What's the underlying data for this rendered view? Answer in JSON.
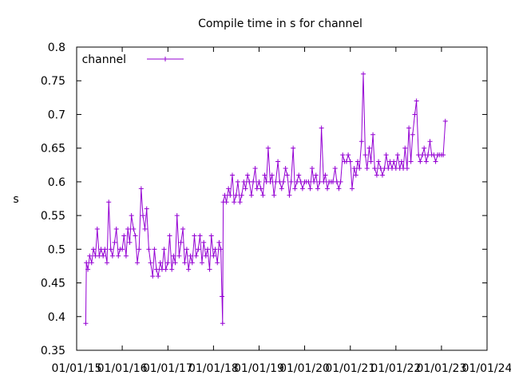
{
  "chart_data": {
    "type": "line",
    "title": "Compile time in s for channel",
    "xlabel": "",
    "ylabel": "s",
    "ylim": [
      0.35,
      0.8
    ],
    "yticks": [
      0.35,
      0.4,
      0.45,
      0.5,
      0.55,
      0.6,
      0.65,
      0.7,
      0.75,
      0.8
    ],
    "ytick_labels": [
      "0.35",
      "0.4",
      "0.45",
      "0.5",
      "0.55",
      "0.6",
      "0.65",
      "0.7",
      "0.75",
      "0.8"
    ],
    "xlim": [
      "2015-01-01",
      "2024-01-01"
    ],
    "xticks": [
      "2015-01-01",
      "2016-01-01",
      "2017-01-01",
      "2018-01-01",
      "2019-01-01",
      "2020-01-01",
      "2021-01-01",
      "2022-01-01",
      "2023-01-01",
      "2024-01-01"
    ],
    "xtick_labels": [
      "01/01/15",
      "01/01/16",
      "01/01/17",
      "01/01/18",
      "01/01/19",
      "01/01/20",
      "01/01/21",
      "01/01/22",
      "01/01/23",
      "01/01/24"
    ],
    "grid": false,
    "legend": "top-left",
    "color": "#9400d3",
    "series": [
      {
        "name": "channel",
        "x": [
          "2015-03-15",
          "2015-03-20",
          "2015-04-01",
          "2015-04-15",
          "2015-05-01",
          "2015-05-15",
          "2015-06-01",
          "2015-06-15",
          "2015-07-01",
          "2015-07-15",
          "2015-08-01",
          "2015-08-15",
          "2015-09-01",
          "2015-09-15",
          "2015-10-01",
          "2015-10-15",
          "2015-11-01",
          "2015-11-15",
          "2015-12-01",
          "2015-12-15",
          "2016-01-01",
          "2016-01-15",
          "2016-02-01",
          "2016-02-15",
          "2016-03-01",
          "2016-03-15",
          "2016-04-01",
          "2016-04-15",
          "2016-05-01",
          "2016-05-15",
          "2016-06-01",
          "2016-06-15",
          "2016-07-01",
          "2016-07-15",
          "2016-08-01",
          "2016-08-15",
          "2016-09-01",
          "2016-09-15",
          "2016-10-01",
          "2016-10-15",
          "2016-11-01",
          "2016-11-15",
          "2016-12-01",
          "2016-12-15",
          "2017-01-01",
          "2017-01-15",
          "2017-02-01",
          "2017-02-15",
          "2017-03-01",
          "2017-03-15",
          "2017-04-01",
          "2017-04-15",
          "2017-05-01",
          "2017-05-15",
          "2017-06-01",
          "2017-06-15",
          "2017-07-01",
          "2017-07-15",
          "2017-08-01",
          "2017-08-15",
          "2017-09-01",
          "2017-09-15",
          "2017-10-01",
          "2017-10-15",
          "2017-11-01",
          "2017-11-15",
          "2017-12-01",
          "2017-12-15",
          "2018-01-01",
          "2018-01-15",
          "2018-02-01",
          "2018-02-15",
          "2018-03-01",
          "2018-03-10",
          "2018-03-15",
          "2018-03-20",
          "2018-04-01",
          "2018-04-15",
          "2018-05-01",
          "2018-05-15",
          "2018-06-01",
          "2018-06-15",
          "2018-07-01",
          "2018-07-15",
          "2018-08-01",
          "2018-08-15",
          "2018-09-01",
          "2018-09-15",
          "2018-10-01",
          "2018-10-15",
          "2018-11-01",
          "2018-11-15",
          "2018-12-01",
          "2018-12-15",
          "2019-01-01",
          "2019-01-15",
          "2019-02-01",
          "2019-02-15",
          "2019-03-01",
          "2019-03-15",
          "2019-04-01",
          "2019-04-15",
          "2019-05-01",
          "2019-05-15",
          "2019-06-01",
          "2019-06-15",
          "2019-07-01",
          "2019-07-15",
          "2019-08-01",
          "2019-08-15",
          "2019-09-01",
          "2019-09-15",
          "2019-10-01",
          "2019-10-15",
          "2019-11-01",
          "2019-11-15",
          "2019-12-01",
          "2019-12-15",
          "2020-01-01",
          "2020-01-15",
          "2020-02-01",
          "2020-02-15",
          "2020-03-01",
          "2020-03-15",
          "2020-04-01",
          "2020-04-15",
          "2020-05-01",
          "2020-05-15",
          "2020-06-01",
          "2020-06-15",
          "2020-07-01",
          "2020-07-15",
          "2020-08-01",
          "2020-08-15",
          "2020-09-01",
          "2020-09-15",
          "2020-10-01",
          "2020-10-15",
          "2020-11-01",
          "2020-11-15",
          "2020-12-01",
          "2020-12-15",
          "2021-01-01",
          "2021-01-15",
          "2021-02-01",
          "2021-02-15",
          "2021-03-01",
          "2021-03-15",
          "2021-04-01",
          "2021-04-15",
          "2021-05-01",
          "2021-05-15",
          "2021-06-01",
          "2021-06-15",
          "2021-07-01",
          "2021-07-15",
          "2021-08-01",
          "2021-08-15",
          "2021-09-01",
          "2021-09-15",
          "2021-10-01",
          "2021-10-15",
          "2021-11-01",
          "2021-11-15",
          "2021-12-01",
          "2021-12-15",
          "2022-01-01",
          "2022-01-15",
          "2022-02-01",
          "2022-02-15",
          "2022-03-01",
          "2022-03-15",
          "2022-04-01",
          "2022-04-15",
          "2022-05-01",
          "2022-05-15",
          "2022-06-01",
          "2022-06-15",
          "2022-07-01",
          "2022-07-15",
          "2022-08-01",
          "2022-08-15",
          "2022-09-01",
          "2022-09-15",
          "2022-10-01",
          "2022-10-15",
          "2022-11-01",
          "2022-11-15",
          "2022-12-01",
          "2022-12-15",
          "2023-01-01",
          "2023-01-15",
          "2023-02-01"
        ],
        "values": [
          0.39,
          0.48,
          0.47,
          0.49,
          0.48,
          0.5,
          0.49,
          0.53,
          0.49,
          0.5,
          0.49,
          0.5,
          0.48,
          0.57,
          0.5,
          0.49,
          0.51,
          0.53,
          0.49,
          0.5,
          0.5,
          0.52,
          0.49,
          0.53,
          0.51,
          0.55,
          0.53,
          0.52,
          0.48,
          0.5,
          0.59,
          0.55,
          0.53,
          0.56,
          0.5,
          0.48,
          0.46,
          0.5,
          0.47,
          0.46,
          0.48,
          0.47,
          0.5,
          0.47,
          0.48,
          0.52,
          0.47,
          0.49,
          0.48,
          0.55,
          0.49,
          0.51,
          0.53,
          0.48,
          0.5,
          0.47,
          0.49,
          0.48,
          0.52,
          0.49,
          0.5,
          0.52,
          0.48,
          0.51,
          0.49,
          0.5,
          0.47,
          0.52,
          0.49,
          0.5,
          0.48,
          0.51,
          0.5,
          0.43,
          0.39,
          0.57,
          0.58,
          0.57,
          0.59,
          0.58,
          0.61,
          0.57,
          0.58,
          0.6,
          0.57,
          0.58,
          0.6,
          0.59,
          0.61,
          0.6,
          0.58,
          0.6,
          0.62,
          0.59,
          0.6,
          0.59,
          0.58,
          0.61,
          0.6,
          0.65,
          0.6,
          0.61,
          0.58,
          0.6,
          0.63,
          0.6,
          0.59,
          0.6,
          0.62,
          0.61,
          0.58,
          0.6,
          0.65,
          0.59,
          0.6,
          0.61,
          0.6,
          0.59,
          0.6,
          0.6,
          0.6,
          0.59,
          0.62,
          0.6,
          0.61,
          0.59,
          0.6,
          0.68,
          0.6,
          0.61,
          0.59,
          0.6,
          0.6,
          0.6,
          0.62,
          0.6,
          0.59,
          0.6,
          0.64,
          0.63,
          0.63,
          0.64,
          0.63,
          0.59,
          0.62,
          0.61,
          0.63,
          0.62,
          0.66,
          0.76,
          0.64,
          0.62,
          0.65,
          0.63,
          0.67,
          0.62,
          0.61,
          0.63,
          0.62,
          0.61,
          0.62,
          0.64,
          0.62,
          0.63,
          0.62,
          0.63,
          0.62,
          0.64,
          0.62,
          0.63,
          0.62,
          0.65,
          0.62,
          0.68,
          0.63,
          0.67,
          0.7,
          0.72,
          0.64,
          0.63,
          0.64,
          0.65,
          0.63,
          0.64,
          0.66,
          0.64,
          0.64,
          0.63,
          0.64,
          0.64,
          0.64,
          0.64,
          0.69
        ]
      }
    ]
  }
}
